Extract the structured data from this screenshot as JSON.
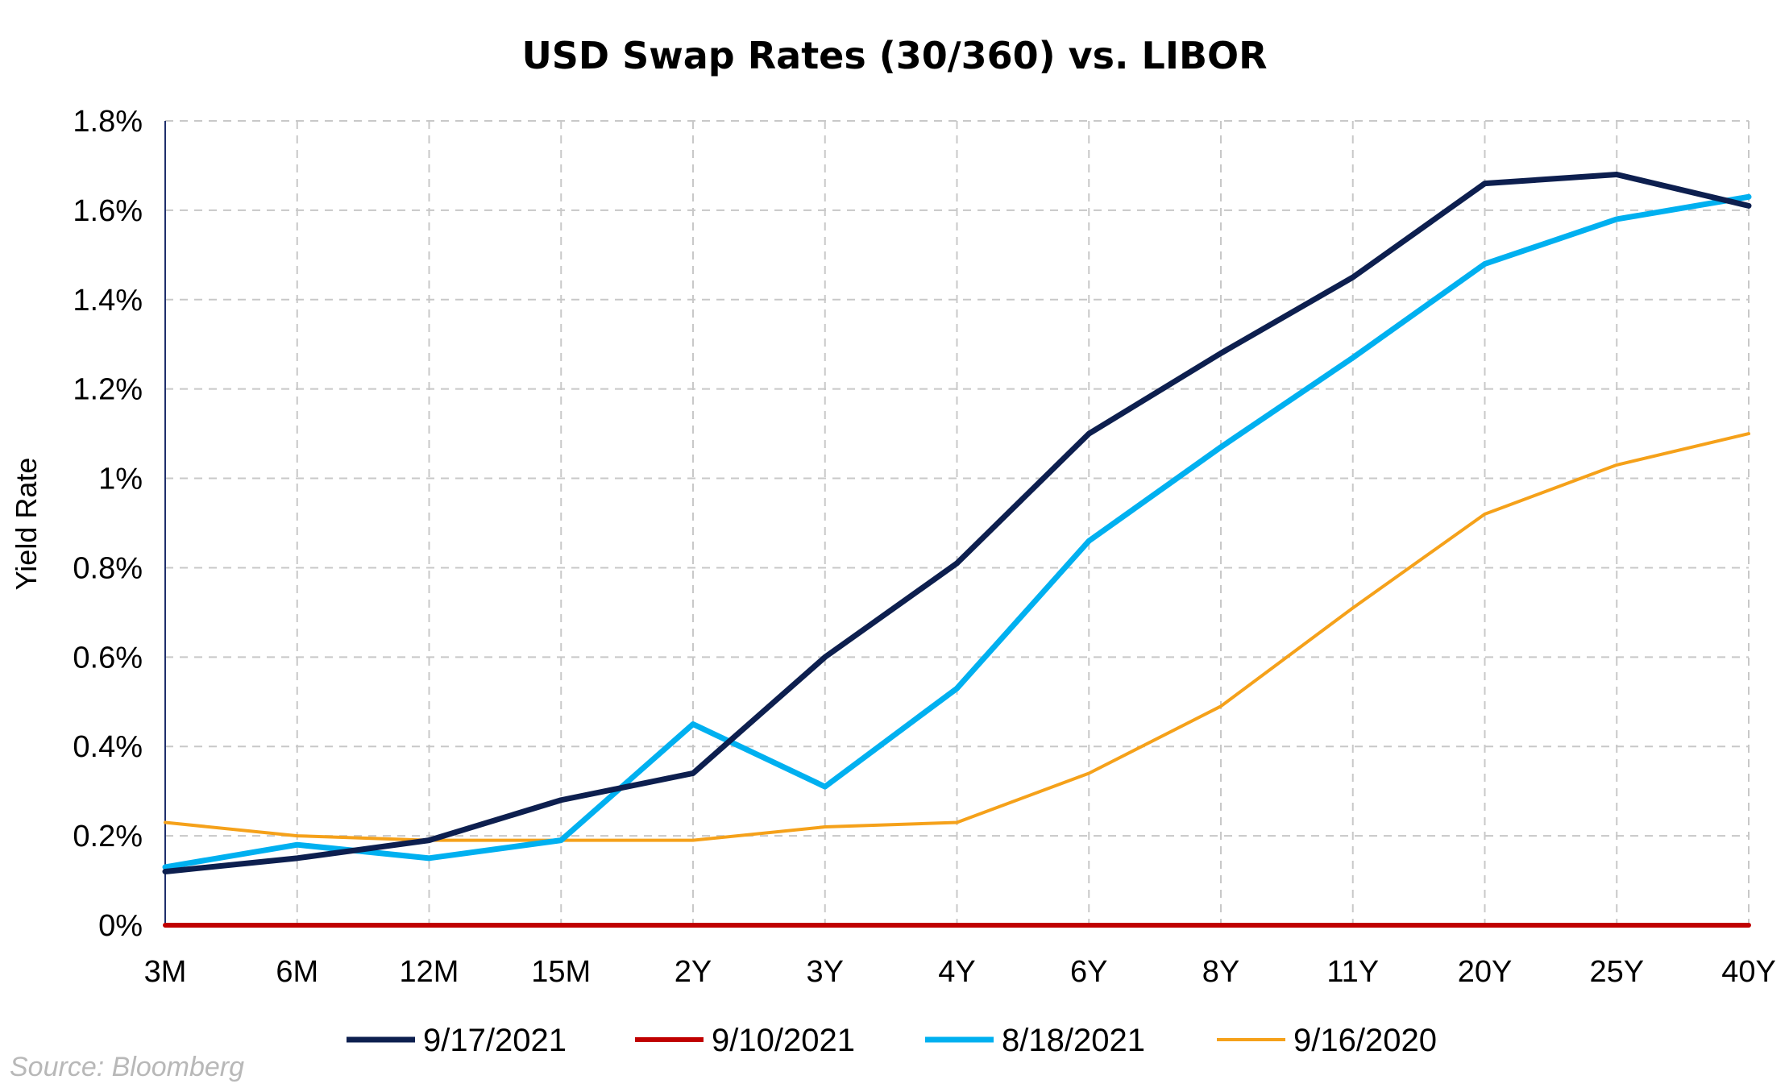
{
  "chart_data": {
    "type": "line",
    "title": "USD Swap Rates (30/360) vs. LIBOR",
    "xlabel": "",
    "ylabel": "Yield Rate",
    "categories": [
      "3M",
      "6M",
      "12M",
      "15M",
      "2Y",
      "3Y",
      "4Y",
      "6Y",
      "8Y",
      "11Y",
      "20Y",
      "25Y",
      "40Y"
    ],
    "ylim": [
      0,
      1.8
    ],
    "yticks": [
      {
        "value": 0,
        "label": "0%"
      },
      {
        "value": 0.2,
        "label": "0.2%"
      },
      {
        "value": 0.4,
        "label": "0.4%"
      },
      {
        "value": 0.6,
        "label": "0.6%"
      },
      {
        "value": 0.8,
        "label": "0.8%"
      },
      {
        "value": 1.0,
        "label": "1%"
      },
      {
        "value": 1.2,
        "label": "1.2%"
      },
      {
        "value": 1.4,
        "label": "1.4%"
      },
      {
        "value": 1.6,
        "label": "1.6%"
      },
      {
        "value": 1.8,
        "label": "1.8%"
      }
    ],
    "grid": true,
    "legend_position": "bottom",
    "series": [
      {
        "name": "9/17/2021",
        "color": "#0d1f4f",
        "values": [
          0.12,
          0.15,
          0.19,
          0.28,
          0.34,
          0.6,
          0.81,
          1.1,
          1.28,
          1.45,
          1.66,
          1.68,
          1.61
        ]
      },
      {
        "name": "9/10/2021",
        "color": "#c00000",
        "values": [
          0,
          0,
          0,
          0,
          0,
          0,
          0,
          0,
          0,
          0,
          0,
          0,
          0
        ]
      },
      {
        "name": "8/18/2021",
        "color": "#00b0f0",
        "values": [
          0.13,
          0.18,
          0.15,
          0.19,
          0.45,
          0.31,
          0.53,
          0.86,
          1.07,
          1.27,
          1.48,
          1.58,
          1.63
        ]
      },
      {
        "name": "9/16/2020",
        "color": "#f5a11a",
        "values": [
          0.23,
          0.2,
          0.19,
          0.19,
          0.19,
          0.22,
          0.23,
          0.34,
          0.49,
          0.71,
          0.92,
          1.03,
          1.1
        ]
      }
    ]
  },
  "source": "Source: Bloomberg"
}
